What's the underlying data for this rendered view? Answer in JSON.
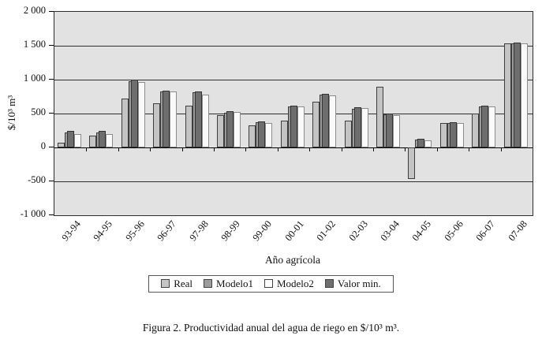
{
  "figure_caption": "Figura 2. Productividad anual del agua de riego en $/10³ m³.",
  "chart_data": {
    "type": "bar",
    "title": "",
    "xlabel": "Año agrícola",
    "ylabel": "$/10³ m³",
    "ylim": [
      -1000,
      2000
    ],
    "yticks": [
      2000,
      1500,
      1000,
      500,
      0,
      -500,
      -1000
    ],
    "ytick_labels": [
      "2 000",
      "1 500",
      "1 000",
      "500",
      "0",
      "-500",
      "-1 000"
    ],
    "grid": true,
    "plot_background": "#e2e2e2",
    "legend_position": "bottom",
    "categories": [
      "93-94",
      "94-95",
      "95-96",
      "96-97",
      "97-98",
      "98-99",
      "99-00",
      "00-01",
      "01-02",
      "02-03",
      "03-04",
      "04-05",
      "05-06",
      "06-07",
      "07-08"
    ],
    "series": [
      {
        "name": "Real",
        "color": "#c4c4c4",
        "values": [
          70,
          170,
          720,
          650,
          620,
          480,
          330,
          400,
          670,
          400,
          890,
          -460,
          360,
          500,
          1540
        ]
      },
      {
        "name": "Modelo1",
        "color": "#9c9c9c",
        "values": [
          220,
          220,
          980,
          825,
          810,
          515,
          370,
          600,
          775,
          575,
          485,
          115,
          355,
          605,
          1535
        ]
      },
      {
        "name": "Modelo2",
        "color": "#fafafa",
        "values": [
          200,
          200,
          970,
          830,
          780,
          520,
          365,
          610,
          770,
          580,
          480,
          110,
          360,
          600,
          1540
        ]
      },
      {
        "name": "Valor min.",
        "color": "#6e6e6e",
        "values": [
          240,
          240,
          1000,
          840,
          830,
          530,
          385,
          620,
          790,
          590,
          500,
          130,
          370,
          620,
          1550
        ]
      }
    ]
  }
}
